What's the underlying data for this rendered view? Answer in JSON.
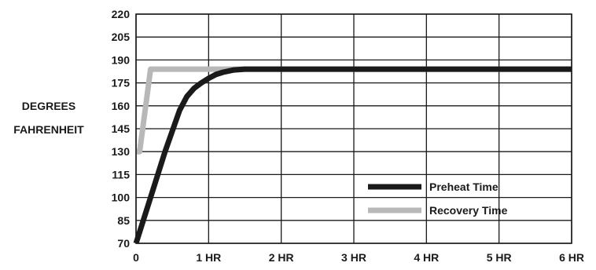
{
  "chart_data": {
    "type": "line",
    "title": "",
    "xlabel": "",
    "ylabel_lines": [
      "DEGREES",
      "FAHRENHEIT"
    ],
    "x_ticks": [
      {
        "value": 0,
        "label": "0"
      },
      {
        "value": 1,
        "label": "1 HR"
      },
      {
        "value": 2,
        "label": "2 HR"
      },
      {
        "value": 3,
        "label": "3 HR"
      },
      {
        "value": 4,
        "label": "4 HR"
      },
      {
        "value": 5,
        "label": "5 HR"
      },
      {
        "value": 6,
        "label": "6 HR"
      }
    ],
    "y_ticks": [
      70,
      85,
      100,
      115,
      130,
      145,
      160,
      175,
      190,
      205,
      220
    ],
    "xlim": [
      0,
      6
    ],
    "ylim": [
      70,
      220
    ],
    "grid": true,
    "legend_position": "bottom-right",
    "series": [
      {
        "name": "Preheat Time",
        "color": "#1a1a1a",
        "x": [
          0,
          0.2,
          0.4,
          0.6,
          0.7,
          0.8,
          0.9,
          1.0,
          1.1,
          1.2,
          1.35,
          1.5,
          1.6,
          2,
          3,
          4,
          5,
          6
        ],
        "y": [
          70,
          100,
          130,
          157,
          166,
          171.5,
          175,
          178,
          180.5,
          182,
          183.5,
          184,
          184,
          184,
          184,
          184,
          184,
          184
        ]
      },
      {
        "name": "Recovery Time",
        "color": "#b8b8b8",
        "x": [
          0,
          0.05,
          0.2,
          0.5,
          1,
          2,
          3,
          4,
          5,
          6
        ],
        "y": [
          130,
          130,
          184,
          184,
          184,
          184,
          184,
          184,
          184,
          184
        ]
      }
    ]
  }
}
